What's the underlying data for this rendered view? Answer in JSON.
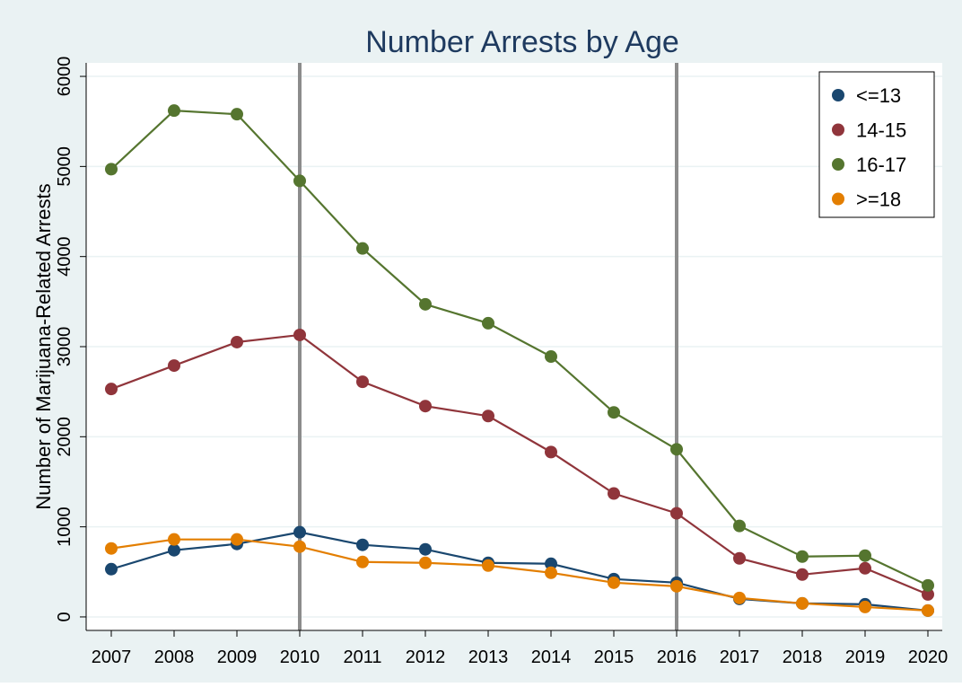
{
  "chart_data": {
    "type": "line",
    "title": "Number Arrests by Age",
    "xlabel": "",
    "ylabel": "Number of Marijuana-Related Arrests",
    "x": [
      2007,
      2008,
      2009,
      2010,
      2011,
      2012,
      2013,
      2014,
      2015,
      2016,
      2017,
      2018,
      2019,
      2020
    ],
    "x_tick_labels": [
      "2007",
      "2008",
      "2009",
      "2010",
      "2011",
      "2012",
      "2013",
      "2014",
      "2015",
      "2016",
      "2017",
      "2018",
      "2019",
      "2020"
    ],
    "y_ticks": [
      0,
      1000,
      2000,
      3000,
      4000,
      5000,
      6000
    ],
    "y_tick_labels": [
      "0",
      "1000",
      "2000",
      "3000",
      "4000",
      "5000",
      "6000"
    ],
    "xlim": [
      2007,
      2020
    ],
    "ylim": [
      -150,
      6150
    ],
    "grid": true,
    "legend_position": "top-right",
    "reference_lines_x": [
      2010,
      2016
    ],
    "series": [
      {
        "name": "<=13",
        "color": "#1a476f",
        "values": [
          530,
          740,
          810,
          940,
          800,
          750,
          600,
          590,
          420,
          380,
          200,
          150,
          140,
          70
        ]
      },
      {
        "name": "14-15",
        "color": "#90353b",
        "values": [
          2530,
          2790,
          3050,
          3130,
          2610,
          2340,
          2230,
          1830,
          1370,
          1150,
          650,
          470,
          540,
          250
        ]
      },
      {
        "name": "16-17",
        "color": "#55752f",
        "values": [
          4970,
          5620,
          5580,
          4840,
          4090,
          3470,
          3260,
          2890,
          2270,
          1860,
          1010,
          670,
          680,
          350
        ]
      },
      {
        "name": ">=18",
        "color": "#e37e00",
        "values": [
          760,
          860,
          860,
          780,
          610,
          600,
          570,
          490,
          380,
          340,
          210,
          150,
          110,
          70
        ]
      }
    ],
    "colors": {
      "background": "#eaf2f3",
      "plot_background": "#ffffff",
      "grid": "#eaf2f3",
      "reference_line": "#8c8c8c",
      "title": "#1e3a5f",
      "text": "#000000"
    }
  }
}
